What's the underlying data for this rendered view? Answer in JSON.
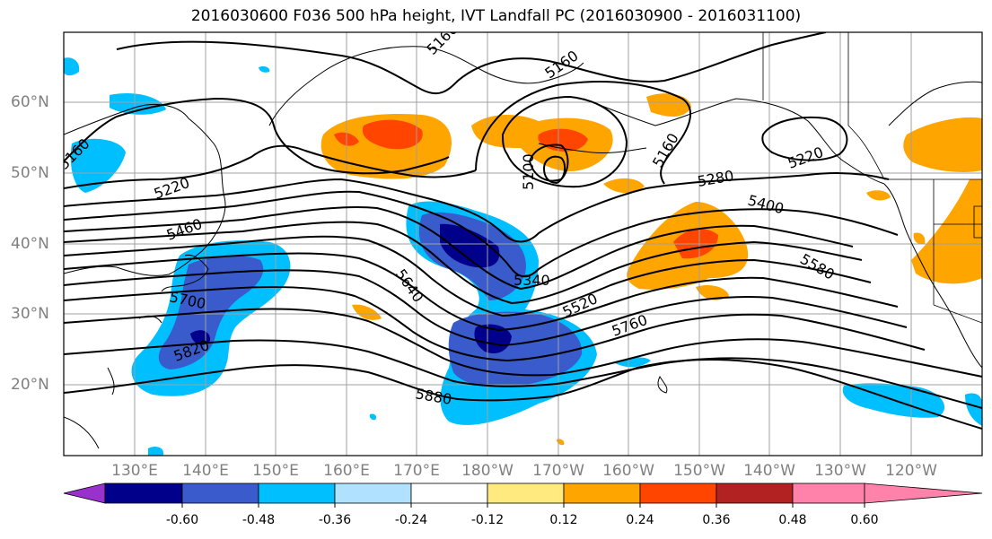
{
  "title": "2016030600 F036 500 hPa height, IVT Landfall PC (2016030900 - 2016031100)",
  "map": {
    "lon_labels": [
      "130°E",
      "140°E",
      "150°E",
      "160°E",
      "170°E",
      "180°W",
      "170°W",
      "160°W",
      "150°W",
      "140°W",
      "130°W",
      "120°W"
    ],
    "lat_labels": [
      "60°N",
      "50°N",
      "40°N",
      "30°N",
      "20°N"
    ],
    "contour_labels": [
      "5160",
      "5160",
      "5160",
      "5160",
      "5220",
      "5220",
      "5100",
      "5280",
      "5400",
      "5460",
      "5580",
      "5640",
      "5340",
      "5520",
      "5700",
      "5760",
      "5820",
      "5880"
    ]
  },
  "colorbar": {
    "colors": [
      "#9932CC",
      "#00008B",
      "#3A5BCB",
      "#00BFFF",
      "#B0E2FF",
      "#FFFFFF",
      "#FFEA80",
      "#FFA500",
      "#FF4500",
      "#B22222",
      "#FF82AB"
    ],
    "tick_labels": [
      "-0.60",
      "-0.48",
      "-0.36",
      "-0.24",
      "-0.12",
      "0.12",
      "0.24",
      "0.36",
      "0.48",
      "0.60"
    ]
  }
}
